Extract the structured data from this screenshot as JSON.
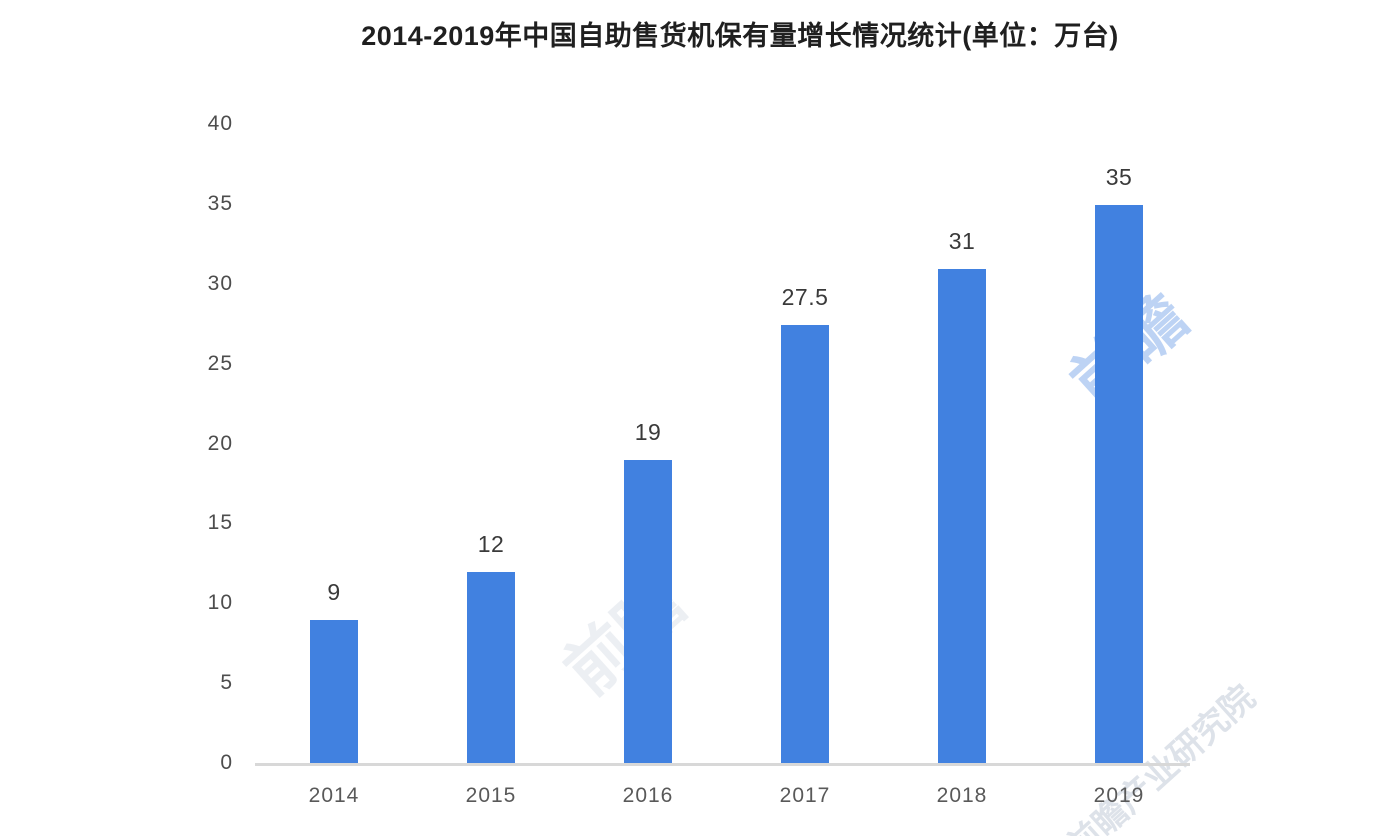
{
  "chart_data": {
    "type": "bar",
    "title": "2014-2019年中国自助售货机保有量增长情况统计(单位：万台)",
    "categories": [
      "2014",
      "2015",
      "2016",
      "2017",
      "2018",
      "2019"
    ],
    "values": [
      9,
      12,
      19,
      27.5,
      31,
      35
    ],
    "value_labels": [
      "9",
      "12",
      "19",
      "27.5",
      "31",
      "35"
    ],
    "xlabel": "",
    "ylabel": "",
    "ylim": [
      0,
      40
    ],
    "yticks": [
      0,
      5,
      10,
      15,
      20,
      25,
      30,
      35,
      40
    ],
    "grid": false,
    "legend": "none",
    "bar_color": "#4181E0"
  },
  "colors": {
    "bar": "#4181E0",
    "axis_line": "#d8d8d8",
    "title_text": "#1f1f1f",
    "y_tick_text": "#4d4d4d",
    "x_tick_text": "#595959",
    "value_label_text": "#3a3a3a",
    "watermark_on_white": "#c3cbd8",
    "watermark_on_bar": "#6f9fe8"
  },
  "watermarks": [
    {
      "text": "前瞻"
    },
    {
      "text": "前瞻"
    },
    {
      "text": "前瞻产业研究院"
    }
  ]
}
